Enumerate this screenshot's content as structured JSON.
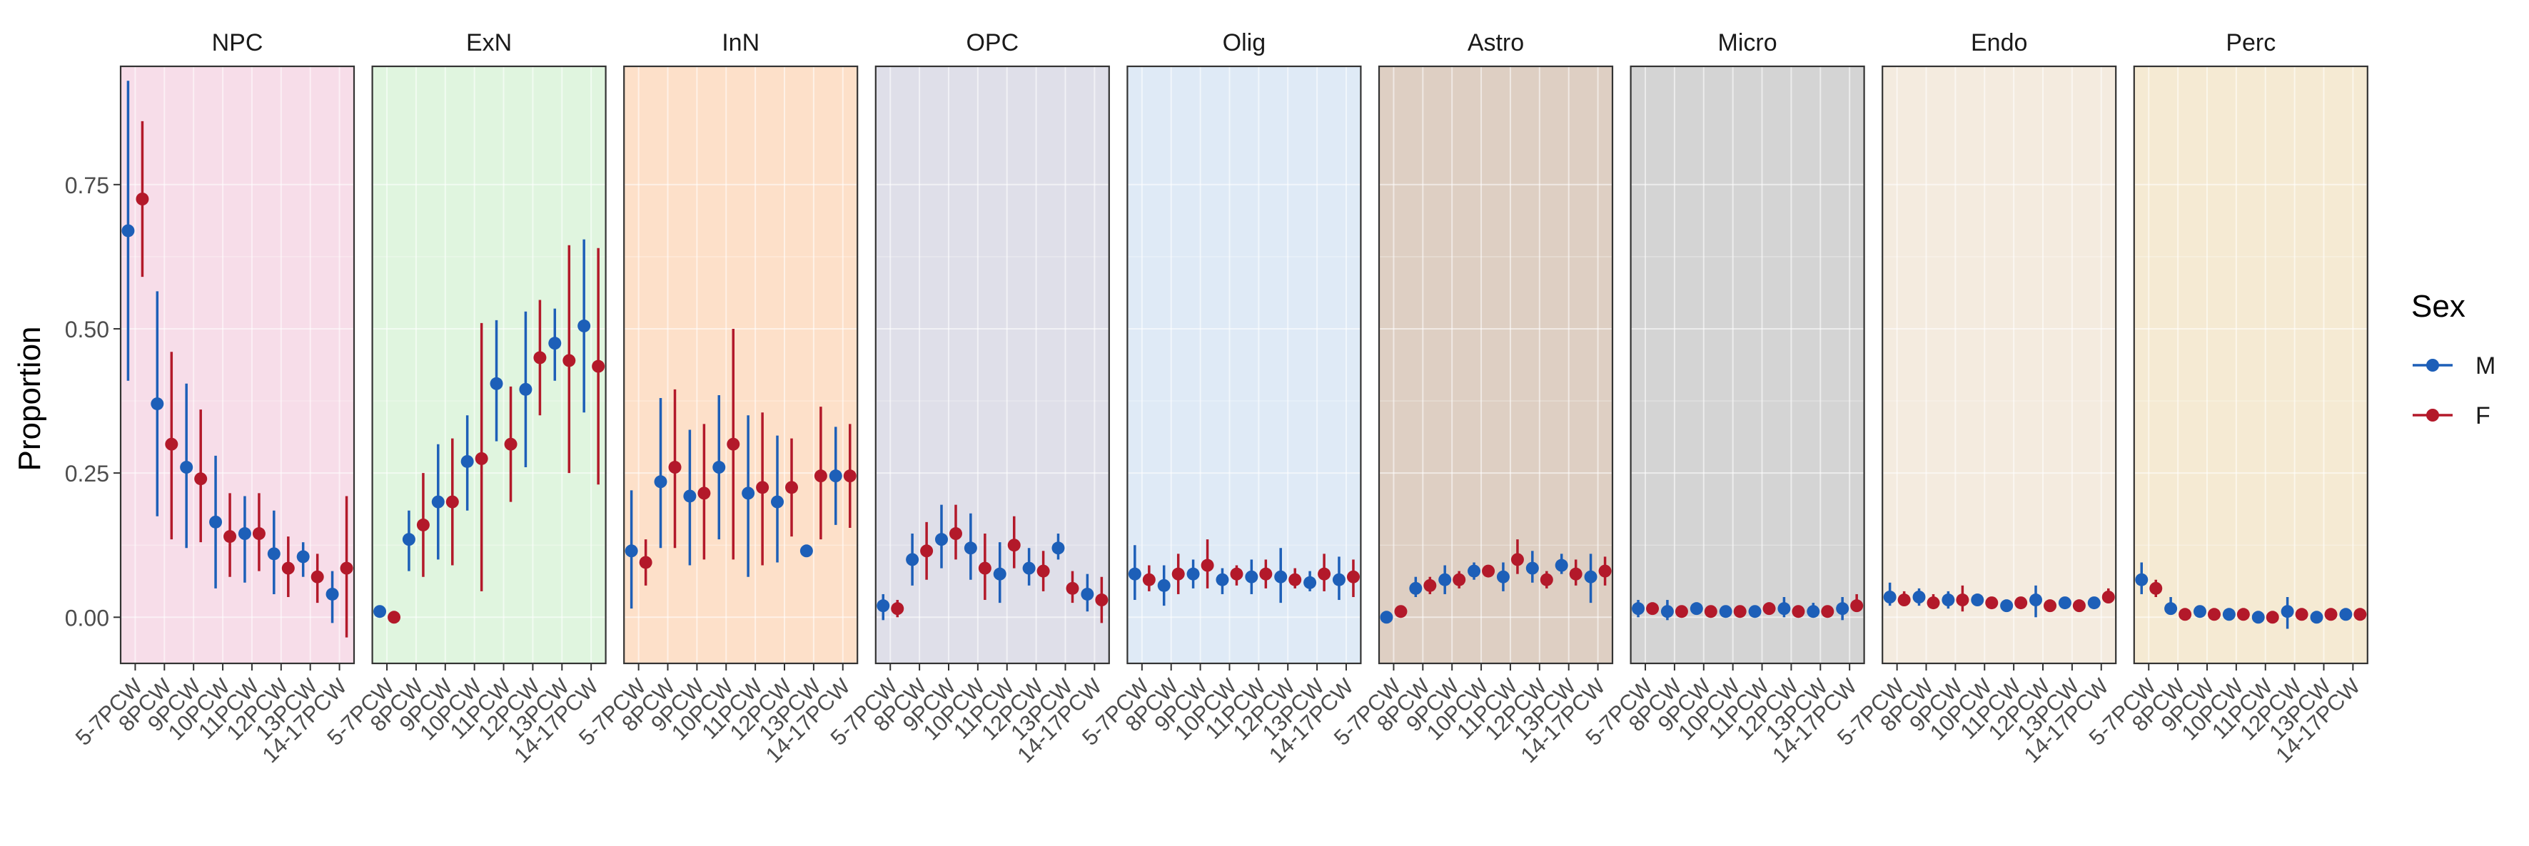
{
  "chart_data": {
    "type": "scatter",
    "facets": [
      "NPC",
      "ExN",
      "InN",
      "OPC",
      "Olig",
      "Astro",
      "Micro",
      "Endo",
      "Perc"
    ],
    "facet_colors": [
      "#f7dde9",
      "#e0f5df",
      "#fde0c9",
      "#dfdfe9",
      "#dfeaf6",
      "#decfc3",
      "#d4d4d4",
      "#f4ebdf",
      "#f5ead3"
    ],
    "categories": [
      "5-7PCW",
      "8PCW",
      "9PCW",
      "10PCW",
      "11PCW",
      "12PCW",
      "13PCW",
      "14-17PCW"
    ],
    "ylabel": "Proportion",
    "ylim": [
      -0.08,
      0.955
    ],
    "yticks": [
      0.0,
      0.25,
      0.5,
      0.75
    ],
    "ytick_labels": [
      "0.00",
      "0.25",
      "0.50",
      "0.75"
    ],
    "grid": true,
    "legend": {
      "title": "Sex",
      "position": "right",
      "entries": [
        {
          "name": "M",
          "color": "#1d5fb8"
        },
        {
          "name": "F",
          "color": "#b3192a"
        }
      ]
    },
    "series": [
      {
        "name": "M",
        "color": "#1d5fb8",
        "facets": {
          "NPC": {
            "mean": [
              0.67,
              0.37,
              0.26,
              0.165,
              0.145,
              0.11,
              0.105,
              0.04
            ],
            "low": [
              0.41,
              0.175,
              0.12,
              0.05,
              0.06,
              0.04,
              0.07,
              -0.01
            ],
            "high": [
              0.93,
              0.565,
              0.405,
              0.28,
              0.21,
              0.185,
              0.13,
              0.08
            ]
          },
          "ExN": {
            "mean": [
              0.01,
              0.135,
              0.2,
              0.27,
              0.405,
              0.395,
              0.475,
              0.505
            ],
            "low": [
              0.0,
              0.08,
              0.1,
              0.185,
              0.305,
              0.26,
              0.41,
              0.355
            ],
            "high": [
              0.015,
              0.185,
              0.3,
              0.35,
              0.515,
              0.53,
              0.535,
              0.655
            ]
          },
          "InN": {
            "mean": [
              0.115,
              0.235,
              0.21,
              0.26,
              0.215,
              0.2,
              0.115,
              0.245
            ],
            "low": [
              0.015,
              0.12,
              0.09,
              0.135,
              0.07,
              0.095,
              0.11,
              0.16
            ],
            "high": [
              0.22,
              0.38,
              0.325,
              0.385,
              0.35,
              0.315,
              0.12,
              0.33
            ]
          },
          "OPC": {
            "mean": [
              0.02,
              0.1,
              0.135,
              0.12,
              0.075,
              0.085,
              0.12,
              0.04
            ],
            "low": [
              -0.005,
              0.055,
              0.085,
              0.065,
              0.025,
              0.055,
              0.1,
              0.01
            ],
            "high": [
              0.04,
              0.145,
              0.195,
              0.18,
              0.13,
              0.12,
              0.145,
              0.075
            ]
          },
          "Olig": {
            "mean": [
              0.075,
              0.055,
              0.075,
              0.065,
              0.07,
              0.07,
              0.06,
              0.065
            ],
            "low": [
              0.03,
              0.02,
              0.05,
              0.04,
              0.04,
              0.025,
              0.045,
              0.03
            ],
            "high": [
              0.125,
              0.09,
              0.1,
              0.085,
              0.1,
              0.12,
              0.08,
              0.105
            ]
          },
          "Astro": {
            "mean": [
              0.0,
              0.05,
              0.065,
              0.08,
              0.07,
              0.085,
              0.09,
              0.07
            ],
            "low": [
              -0.005,
              0.035,
              0.04,
              0.065,
              0.045,
              0.06,
              0.075,
              0.025
            ],
            "high": [
              0.005,
              0.07,
              0.09,
              0.095,
              0.095,
              0.115,
              0.11,
              0.11
            ]
          },
          "Micro": {
            "mean": [
              0.015,
              0.01,
              0.015,
              0.01,
              0.01,
              0.015,
              0.01,
              0.015
            ],
            "low": [
              0.0,
              -0.005,
              0.005,
              0.0,
              0.0,
              0.0,
              0.0,
              -0.005
            ],
            "high": [
              0.03,
              0.03,
              0.025,
              0.02,
              0.02,
              0.035,
              0.025,
              0.035
            ]
          },
          "Endo": {
            "mean": [
              0.035,
              0.035,
              0.03,
              0.03,
              0.02,
              0.03,
              0.025,
              0.025
            ],
            "low": [
              0.02,
              0.02,
              0.015,
              0.02,
              0.015,
              0.0,
              0.02,
              0.015
            ],
            "high": [
              0.06,
              0.05,
              0.045,
              0.035,
              0.03,
              0.055,
              0.035,
              0.035
            ]
          },
          "Perc": {
            "mean": [
              0.065,
              0.015,
              0.01,
              0.005,
              0.0,
              0.01,
              0.0,
              0.005
            ],
            "low": [
              0.04,
              0.005,
              0.0,
              0.0,
              0.0,
              -0.02,
              0.0,
              0.0
            ],
            "high": [
              0.095,
              0.035,
              0.02,
              0.015,
              0.01,
              0.035,
              0.005,
              0.01
            ]
          }
        }
      },
      {
        "name": "F",
        "color": "#b3192a",
        "facets": {
          "NPC": {
            "mean": [
              0.725,
              0.3,
              0.24,
              0.14,
              0.145,
              0.085,
              0.07,
              0.085
            ],
            "low": [
              0.59,
              0.135,
              0.13,
              0.07,
              0.08,
              0.035,
              0.025,
              -0.035
            ],
            "high": [
              0.86,
              0.46,
              0.36,
              0.215,
              0.215,
              0.14,
              0.11,
              0.21
            ]
          },
          "ExN": {
            "mean": [
              0.0,
              0.16,
              0.2,
              0.275,
              0.3,
              0.45,
              0.445,
              0.435
            ],
            "low": [
              0.0,
              0.07,
              0.09,
              0.045,
              0.2,
              0.35,
              0.25,
              0.23
            ],
            "high": [
              0.005,
              0.25,
              0.31,
              0.51,
              0.4,
              0.55,
              0.645,
              0.64
            ]
          },
          "InN": {
            "mean": [
              0.095,
              0.26,
              0.215,
              0.3,
              0.225,
              0.225,
              0.245,
              0.245
            ],
            "low": [
              0.055,
              0.12,
              0.1,
              0.1,
              0.09,
              0.14,
              0.135,
              0.155
            ],
            "high": [
              0.135,
              0.395,
              0.335,
              0.5,
              0.355,
              0.31,
              0.365,
              0.335
            ]
          },
          "OPC": {
            "mean": [
              0.015,
              0.115,
              0.145,
              0.085,
              0.125,
              0.08,
              0.05,
              0.03
            ],
            "low": [
              0.0,
              0.065,
              0.1,
              0.03,
              0.085,
              0.045,
              0.025,
              -0.01
            ],
            "high": [
              0.03,
              0.165,
              0.195,
              0.145,
              0.175,
              0.115,
              0.08,
              0.07
            ]
          },
          "Olig": {
            "mean": [
              0.065,
              0.075,
              0.09,
              0.075,
              0.075,
              0.065,
              0.075,
              0.07
            ],
            "low": [
              0.045,
              0.04,
              0.05,
              0.055,
              0.05,
              0.05,
              0.045,
              0.035
            ],
            "high": [
              0.09,
              0.11,
              0.135,
              0.09,
              0.1,
              0.085,
              0.11,
              0.1
            ]
          },
          "Astro": {
            "mean": [
              0.01,
              0.055,
              0.065,
              0.08,
              0.1,
              0.065,
              0.075,
              0.08
            ],
            "low": [
              0.0,
              0.04,
              0.05,
              0.07,
              0.075,
              0.05,
              0.055,
              0.055
            ],
            "high": [
              0.02,
              0.07,
              0.08,
              0.09,
              0.135,
              0.08,
              0.1,
              0.105
            ]
          },
          "Micro": {
            "mean": [
              0.015,
              0.01,
              0.01,
              0.01,
              0.015,
              0.01,
              0.01,
              0.02
            ],
            "low": [
              0.005,
              0.005,
              0.005,
              0.005,
              0.005,
              0.005,
              0.005,
              0.01
            ],
            "high": [
              0.025,
              0.02,
              0.015,
              0.015,
              0.025,
              0.015,
              0.02,
              0.04
            ]
          },
          "Endo": {
            "mean": [
              0.03,
              0.025,
              0.03,
              0.025,
              0.025,
              0.02,
              0.02,
              0.035
            ],
            "low": [
              0.02,
              0.015,
              0.01,
              0.015,
              0.02,
              0.015,
              0.015,
              0.025
            ],
            "high": [
              0.045,
              0.04,
              0.055,
              0.03,
              0.03,
              0.03,
              0.025,
              0.05
            ]
          },
          "Perc": {
            "mean": [
              0.05,
              0.005,
              0.005,
              0.005,
              0.0,
              0.005,
              0.005,
              0.005
            ],
            "low": [
              0.035,
              0.0,
              0.0,
              0.0,
              0.0,
              0.0,
              0.0,
              0.0
            ],
            "high": [
              0.065,
              0.01,
              0.01,
              0.01,
              0.005,
              0.01,
              0.01,
              0.01
            ]
          }
        }
      }
    ]
  }
}
